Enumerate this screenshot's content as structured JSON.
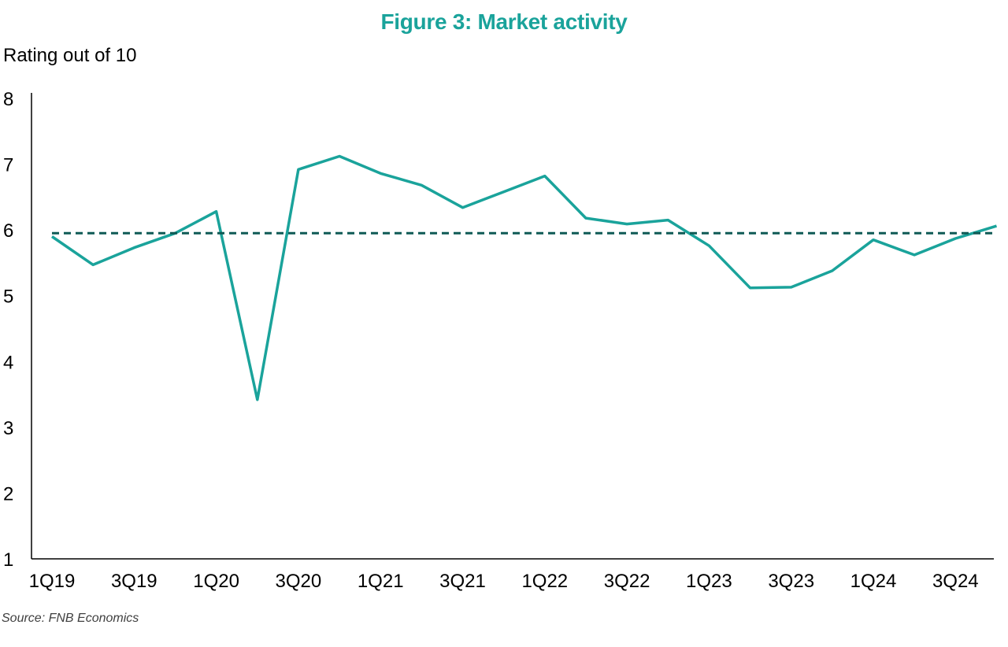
{
  "title": "Figure 3: Market activity",
  "source": "Source: FNB Economics",
  "colors": {
    "series": "#1aa39b",
    "average": "#0f5a55",
    "title": "#1aa39b",
    "axis": "#000000"
  },
  "chart_data": {
    "type": "line",
    "title": "Figure 3: Market activity",
    "ylabel": "Rating out of 10",
    "xlabel": "",
    "ylim": [
      1,
      8
    ],
    "yticks": [
      1,
      2,
      3,
      4,
      5,
      6,
      7,
      8
    ],
    "x": [
      "1Q19",
      "2Q19",
      "3Q19",
      "4Q19",
      "1Q20",
      "2Q20",
      "3Q20",
      "4Q20",
      "1Q21",
      "2Q21",
      "3Q21",
      "4Q21",
      "1Q22",
      "2Q22",
      "3Q22",
      "4Q22",
      "1Q23",
      "2Q23",
      "3Q23",
      "4Q23",
      "1Q24",
      "2Q24",
      "3Q24",
      "4Q24"
    ],
    "xtick_labels": [
      "1Q19",
      "3Q19",
      "1Q20",
      "3Q20",
      "1Q21",
      "3Q21",
      "1Q22",
      "3Q22",
      "1Q23",
      "3Q23",
      "1Q24",
      "3Q24"
    ],
    "series": [
      {
        "style": "solid",
        "values": [
          5.9,
          5.47,
          5.73,
          5.95,
          6.28,
          3.42,
          6.92,
          7.12,
          6.86,
          6.68,
          6.34,
          6.58,
          6.82,
          6.18,
          6.09,
          6.15,
          5.76,
          5.12,
          5.13,
          5.38,
          5.85,
          5.62,
          5.87,
          6.06
        ]
      },
      {
        "style": "dashed",
        "values": [
          5.95,
          5.95,
          5.95,
          5.95,
          5.95,
          5.95,
          5.95,
          5.95,
          5.95,
          5.95,
          5.95,
          5.95,
          5.95,
          5.95,
          5.95,
          5.95,
          5.95,
          5.95,
          5.95,
          5.95,
          5.95,
          5.95,
          5.95,
          5.95
        ]
      }
    ],
    "grid": false,
    "legend": "none"
  }
}
